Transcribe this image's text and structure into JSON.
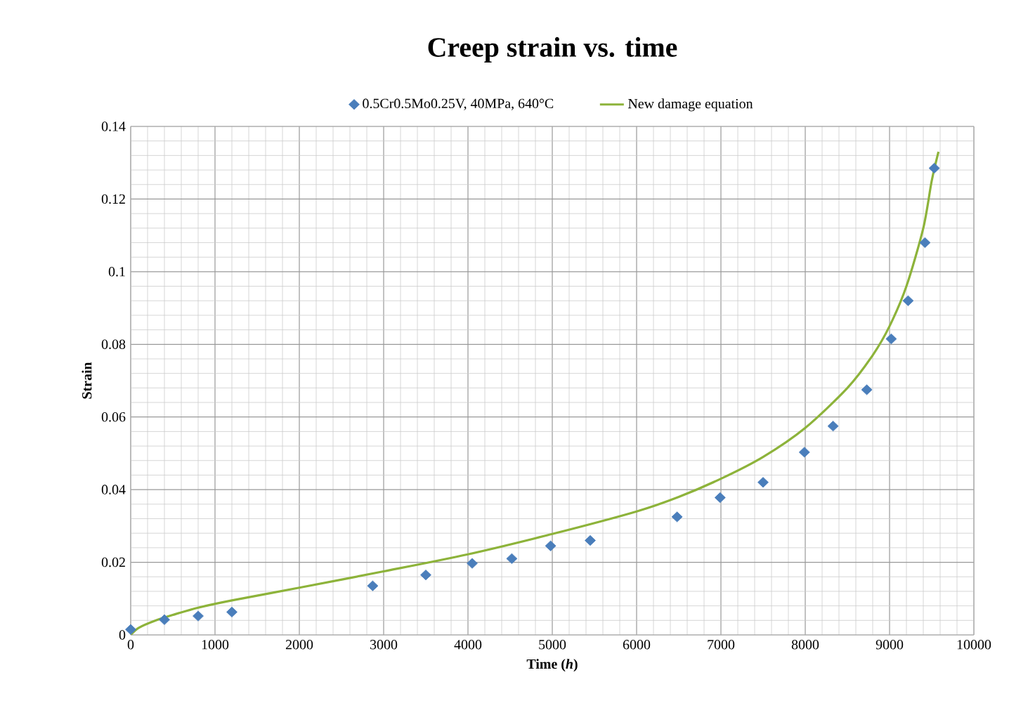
{
  "chart_data": {
    "type": "scatter",
    "title": "Creep strain vs. time",
    "xlabel": "Time (*h*)",
    "ylabel": "Strain",
    "xlim": [
      0,
      10000
    ],
    "ylim": [
      0,
      0.14
    ],
    "xticks": [
      0,
      1000,
      2000,
      3000,
      4000,
      5000,
      6000,
      7000,
      8000,
      9000,
      10000
    ],
    "yticks": [
      0,
      0.02,
      0.04,
      0.06,
      0.08,
      0.1,
      0.12,
      0.14
    ],
    "grid": true,
    "legend": "top",
    "series": [
      {
        "name": "0.5Cr0.5Mo0.25V, 40MPa, 640°C",
        "marker": "diamond",
        "color": "#4a7ebb",
        "x": [
          0,
          400,
          800,
          1200,
          2870,
          3500,
          4050,
          4520,
          4980,
          5450,
          6480,
          6990,
          7500,
          7990,
          8330,
          8730,
          9020,
          9220,
          9420,
          9530
        ],
        "values": [
          0.0015,
          0.0042,
          0.0052,
          0.0063,
          0.0135,
          0.0165,
          0.0197,
          0.021,
          0.0245,
          0.026,
          0.0325,
          0.0378,
          0.042,
          0.0503,
          0.0575,
          0.0675,
          0.0815,
          0.092,
          0.108,
          0.1285
        ]
      },
      {
        "name": "New damage equation",
        "type": "line",
        "color": "#8db33a",
        "x": [
          0,
          100,
          300,
          500,
          800,
          1200,
          2000,
          3000,
          4000,
          5000,
          6000,
          6500,
          7000,
          7500,
          8000,
          8500,
          8800,
          9000,
          9200,
          9400,
          9500,
          9580
        ],
        "values": [
          0,
          0.002,
          0.004,
          0.0055,
          0.0075,
          0.0095,
          0.013,
          0.0175,
          0.0222,
          0.0278,
          0.034,
          0.038,
          0.043,
          0.049,
          0.057,
          0.068,
          0.077,
          0.085,
          0.096,
          0.112,
          0.125,
          0.133
        ]
      }
    ]
  }
}
